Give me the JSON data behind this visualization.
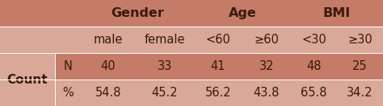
{
  "dark_color": "#c47b68",
  "light_color": "#d9a898",
  "header1_labels": [
    "Gender",
    "Age",
    "BMI"
  ],
  "header2_labels": [
    "male",
    "female",
    "<60",
    "≥60",
    "<30",
    "≥30"
  ],
  "row_labels": [
    "N",
    "%"
  ],
  "group_label": "Count",
  "data": [
    [
      "40",
      "33",
      "41",
      "32",
      "48",
      "25"
    ],
    [
      "54.8",
      "45.2",
      "56.2",
      "43.8",
      "65.8",
      "34.2"
    ]
  ],
  "font_size": 10.5,
  "header_font_size": 11.5,
  "text_color": "#3a1a0a"
}
